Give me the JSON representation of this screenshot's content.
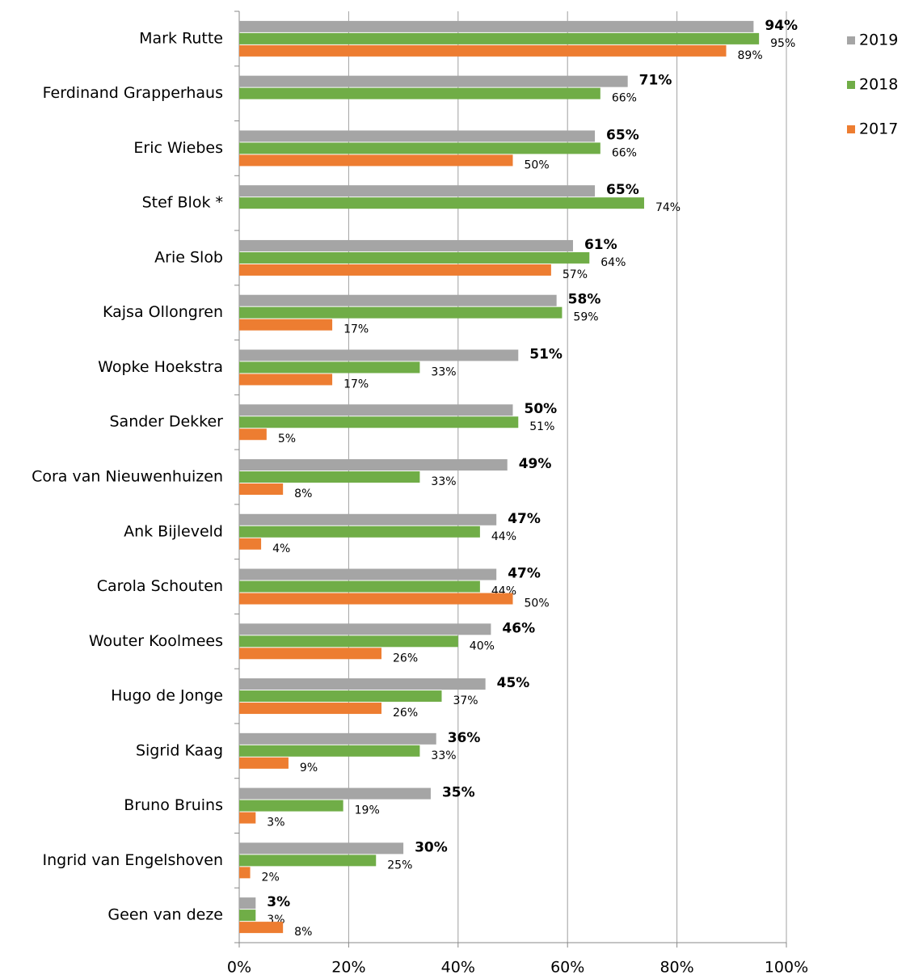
{
  "chart_data": {
    "type": "bar",
    "orientation": "horizontal",
    "categories": [
      "Mark Rutte",
      "Ferdinand Grapperhaus",
      "Eric Wiebes",
      "Stef Blok *",
      "Arie Slob",
      "Kajsa Ollongren",
      "Wopke Hoekstra",
      "Sander Dekker",
      "Cora van Nieuwenhuizen",
      "Ank Bijleveld",
      "Carola Schouten",
      "Wouter Koolmees",
      "Hugo de Jonge",
      "Sigrid Kaag",
      "Bruno Bruins",
      "Ingrid van Engelshoven",
      "Geen van deze"
    ],
    "series": [
      {
        "name": "2019",
        "color": "#a5a5a5",
        "bold_labels": true,
        "values": [
          94,
          71,
          65,
          65,
          61,
          58,
          51,
          50,
          49,
          47,
          47,
          46,
          45,
          36,
          35,
          30,
          3
        ],
        "value_labels": [
          "94%",
          "71%",
          "65%",
          "65%",
          "61%",
          "58%",
          "51%",
          "50%",
          "49%",
          "47%",
          "47%",
          "46%",
          "45%",
          "36%",
          "35%",
          "30%",
          "3%"
        ]
      },
      {
        "name": "2018",
        "color": "#70ad47",
        "bold_labels": false,
        "values": [
          95,
          66,
          66,
          74,
          64,
          59,
          33,
          51,
          33,
          44,
          44,
          40,
          37,
          33,
          19,
          25,
          3
        ],
        "value_labels": [
          "95%",
          "66%",
          "66%",
          "74%",
          "64%",
          "59%",
          "33%",
          "51%",
          "33%",
          "44%",
          "44%",
          "40%",
          "37%",
          "33%",
          "19%",
          "25%",
          "3%"
        ]
      },
      {
        "name": "2017",
        "color": "#ed7d31",
        "bold_labels": false,
        "values": [
          89,
          null,
          50,
          null,
          57,
          17,
          17,
          5,
          8,
          4,
          50,
          26,
          26,
          9,
          3,
          2,
          8
        ],
        "value_labels": [
          "89%",
          null,
          "50%",
          null,
          "57%",
          "17%",
          "17%",
          "5%",
          "8%",
          "4%",
          "50%",
          "26%",
          "26%",
          "9%",
          "3%",
          "2%",
          "8%"
        ]
      }
    ],
    "xlim": [
      0,
      100
    ],
    "xticks": [
      {
        "value": 0,
        "label": "0%"
      },
      {
        "value": 20,
        "label": "20%"
      },
      {
        "value": 40,
        "label": "40%"
      },
      {
        "value": 60,
        "label": "60%"
      },
      {
        "value": 80,
        "label": "80%"
      },
      {
        "value": 100,
        "label": "100%"
      }
    ],
    "grid": true,
    "legend": "right"
  }
}
